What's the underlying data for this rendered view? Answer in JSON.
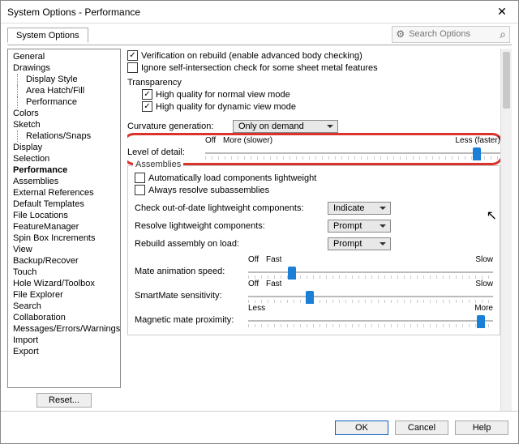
{
  "window": {
    "title": "System Options - Performance"
  },
  "tab": {
    "label": "System Options"
  },
  "search": {
    "placeholder": "Search Options"
  },
  "tree": {
    "items": [
      {
        "label": "General",
        "indent": 0
      },
      {
        "label": "Drawings",
        "indent": 0
      },
      {
        "label": "Display Style",
        "indent": 1
      },
      {
        "label": "Area Hatch/Fill",
        "indent": 1
      },
      {
        "label": "Performance",
        "indent": 1
      },
      {
        "label": "Colors",
        "indent": 0
      },
      {
        "label": "Sketch",
        "indent": 0
      },
      {
        "label": "Relations/Snaps",
        "indent": 1
      },
      {
        "label": "Display",
        "indent": 0
      },
      {
        "label": "Selection",
        "indent": 0
      },
      {
        "label": "Performance",
        "indent": 0,
        "selected": true
      },
      {
        "label": "Assemblies",
        "indent": 0
      },
      {
        "label": "External References",
        "indent": 0
      },
      {
        "label": "Default Templates",
        "indent": 0
      },
      {
        "label": "File Locations",
        "indent": 0
      },
      {
        "label": "FeatureManager",
        "indent": 0
      },
      {
        "label": "Spin Box Increments",
        "indent": 0
      },
      {
        "label": "View",
        "indent": 0
      },
      {
        "label": "Backup/Recover",
        "indent": 0
      },
      {
        "label": "Touch",
        "indent": 0
      },
      {
        "label": "Hole Wizard/Toolbox",
        "indent": 0
      },
      {
        "label": "File Explorer",
        "indent": 0
      },
      {
        "label": "Search",
        "indent": 0
      },
      {
        "label": "Collaboration",
        "indent": 0
      },
      {
        "label": "Messages/Errors/Warnings",
        "indent": 0
      },
      {
        "label": "Import",
        "indent": 0
      },
      {
        "label": "Export",
        "indent": 0
      }
    ]
  },
  "reset": {
    "label": "Reset..."
  },
  "checks": {
    "verification": {
      "checked": true,
      "label": "Verification on rebuild (enable advanced body checking)"
    },
    "ignore_self": {
      "checked": false,
      "label": "Ignore self-intersection check for some sheet metal features"
    },
    "hq_normal": {
      "checked": true,
      "label": "High quality for normal view mode"
    },
    "hq_dynamic": {
      "checked": true,
      "label": "High quality for dynamic view mode"
    },
    "auto_lightweight": {
      "checked": false,
      "label": "Automatically load components lightweight"
    },
    "always_resolve": {
      "checked": false,
      "label": "Always resolve subassemblies"
    }
  },
  "groups": {
    "transparency": "Transparency",
    "assemblies": "Assemblies"
  },
  "labels": {
    "curvature": "Curvature generation:",
    "lod": "Level of detail:",
    "check_ood": "Check out-of-date lightweight components:",
    "resolve_lw": "Resolve lightweight components:",
    "rebuild_load": "Rebuild assembly on load:",
    "mate_anim": "Mate animation speed:",
    "smartmate": "SmartMate sensitivity:",
    "magnetic": "Magnetic mate proximity:"
  },
  "selects": {
    "curvature": "Only on demand",
    "check_ood": "Indicate",
    "resolve_lw": "Prompt",
    "rebuild_load": "Prompt"
  },
  "sliders": {
    "lod": {
      "left_label": "Off",
      "mid_label": "More (slower)",
      "right_label": "Less (faster)",
      "value_pct": 92,
      "accent": "#1a7fd6"
    },
    "mate_anim": {
      "left_label": "Off",
      "mid_label": "Fast",
      "right_label": "Slow",
      "value_pct": 18
    },
    "smartmate": {
      "left_label": "Off",
      "mid_label": "Fast",
      "right_label": "Slow",
      "value_pct": 25
    },
    "magnetic": {
      "left_label": "Less",
      "right_label": "More",
      "value_pct": 95
    }
  },
  "callout": {
    "color": "#d9332b"
  },
  "footer": {
    "ok": "OK",
    "cancel": "Cancel",
    "help": "Help"
  }
}
